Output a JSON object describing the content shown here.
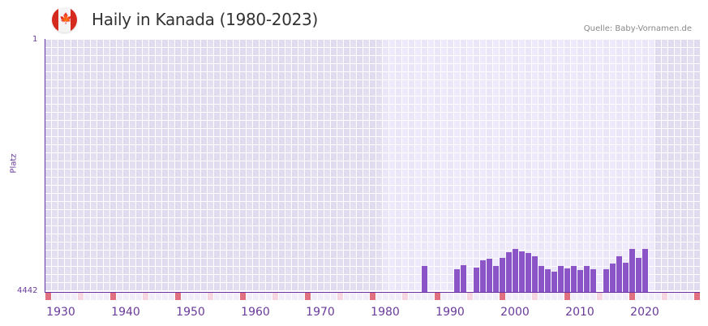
{
  "header": {
    "title": "Haily in Kanada (1980-2023)",
    "source": "Quelle: Baby-Vornamen.de",
    "flag_icon": "canada-flag-icon"
  },
  "colors": {
    "bar": "#8b55c8",
    "axis": "#6a2fa0",
    "grid_out_of_range": "#e3dff0",
    "grid_in_range": "#efeafb",
    "decade_marker": "#e07080",
    "half_decade_marker": "#f5d5e0"
  },
  "chart_data": {
    "type": "bar",
    "title": "Haily in Kanada (1980-2023)",
    "xlabel": "",
    "ylabel": "Platz",
    "y_inverted": true,
    "ylim": [
      4442,
      1
    ],
    "xlim": [
      1928,
      2028
    ],
    "highlight_range": [
      1980,
      2021
    ],
    "x_ticks": [
      "1930",
      "1940",
      "1950",
      "1960",
      "1970",
      "1980",
      "1990",
      "2000",
      "2010",
      "2020"
    ],
    "y_ticks": [
      "1",
      "4442"
    ],
    "grid": true,
    "x": [
      1986,
      1991,
      1992,
      1994,
      1995,
      1996,
      1997,
      1998,
      1999,
      2000,
      2001,
      2002,
      2003,
      2004,
      2005,
      2006,
      2007,
      2008,
      2009,
      2010,
      2011,
      2012,
      2014,
      2015,
      2016,
      2017,
      2018,
      2019,
      2020
    ],
    "values": [
      3985,
      4042,
      3971,
      4014,
      3885,
      3857,
      3985,
      3842,
      3742,
      3685,
      3728,
      3757,
      3814,
      3985,
      4042,
      4085,
      3985,
      4028,
      3985,
      4056,
      3985,
      4042,
      4042,
      3942,
      3814,
      3928,
      3685,
      3842,
      3685
    ]
  }
}
